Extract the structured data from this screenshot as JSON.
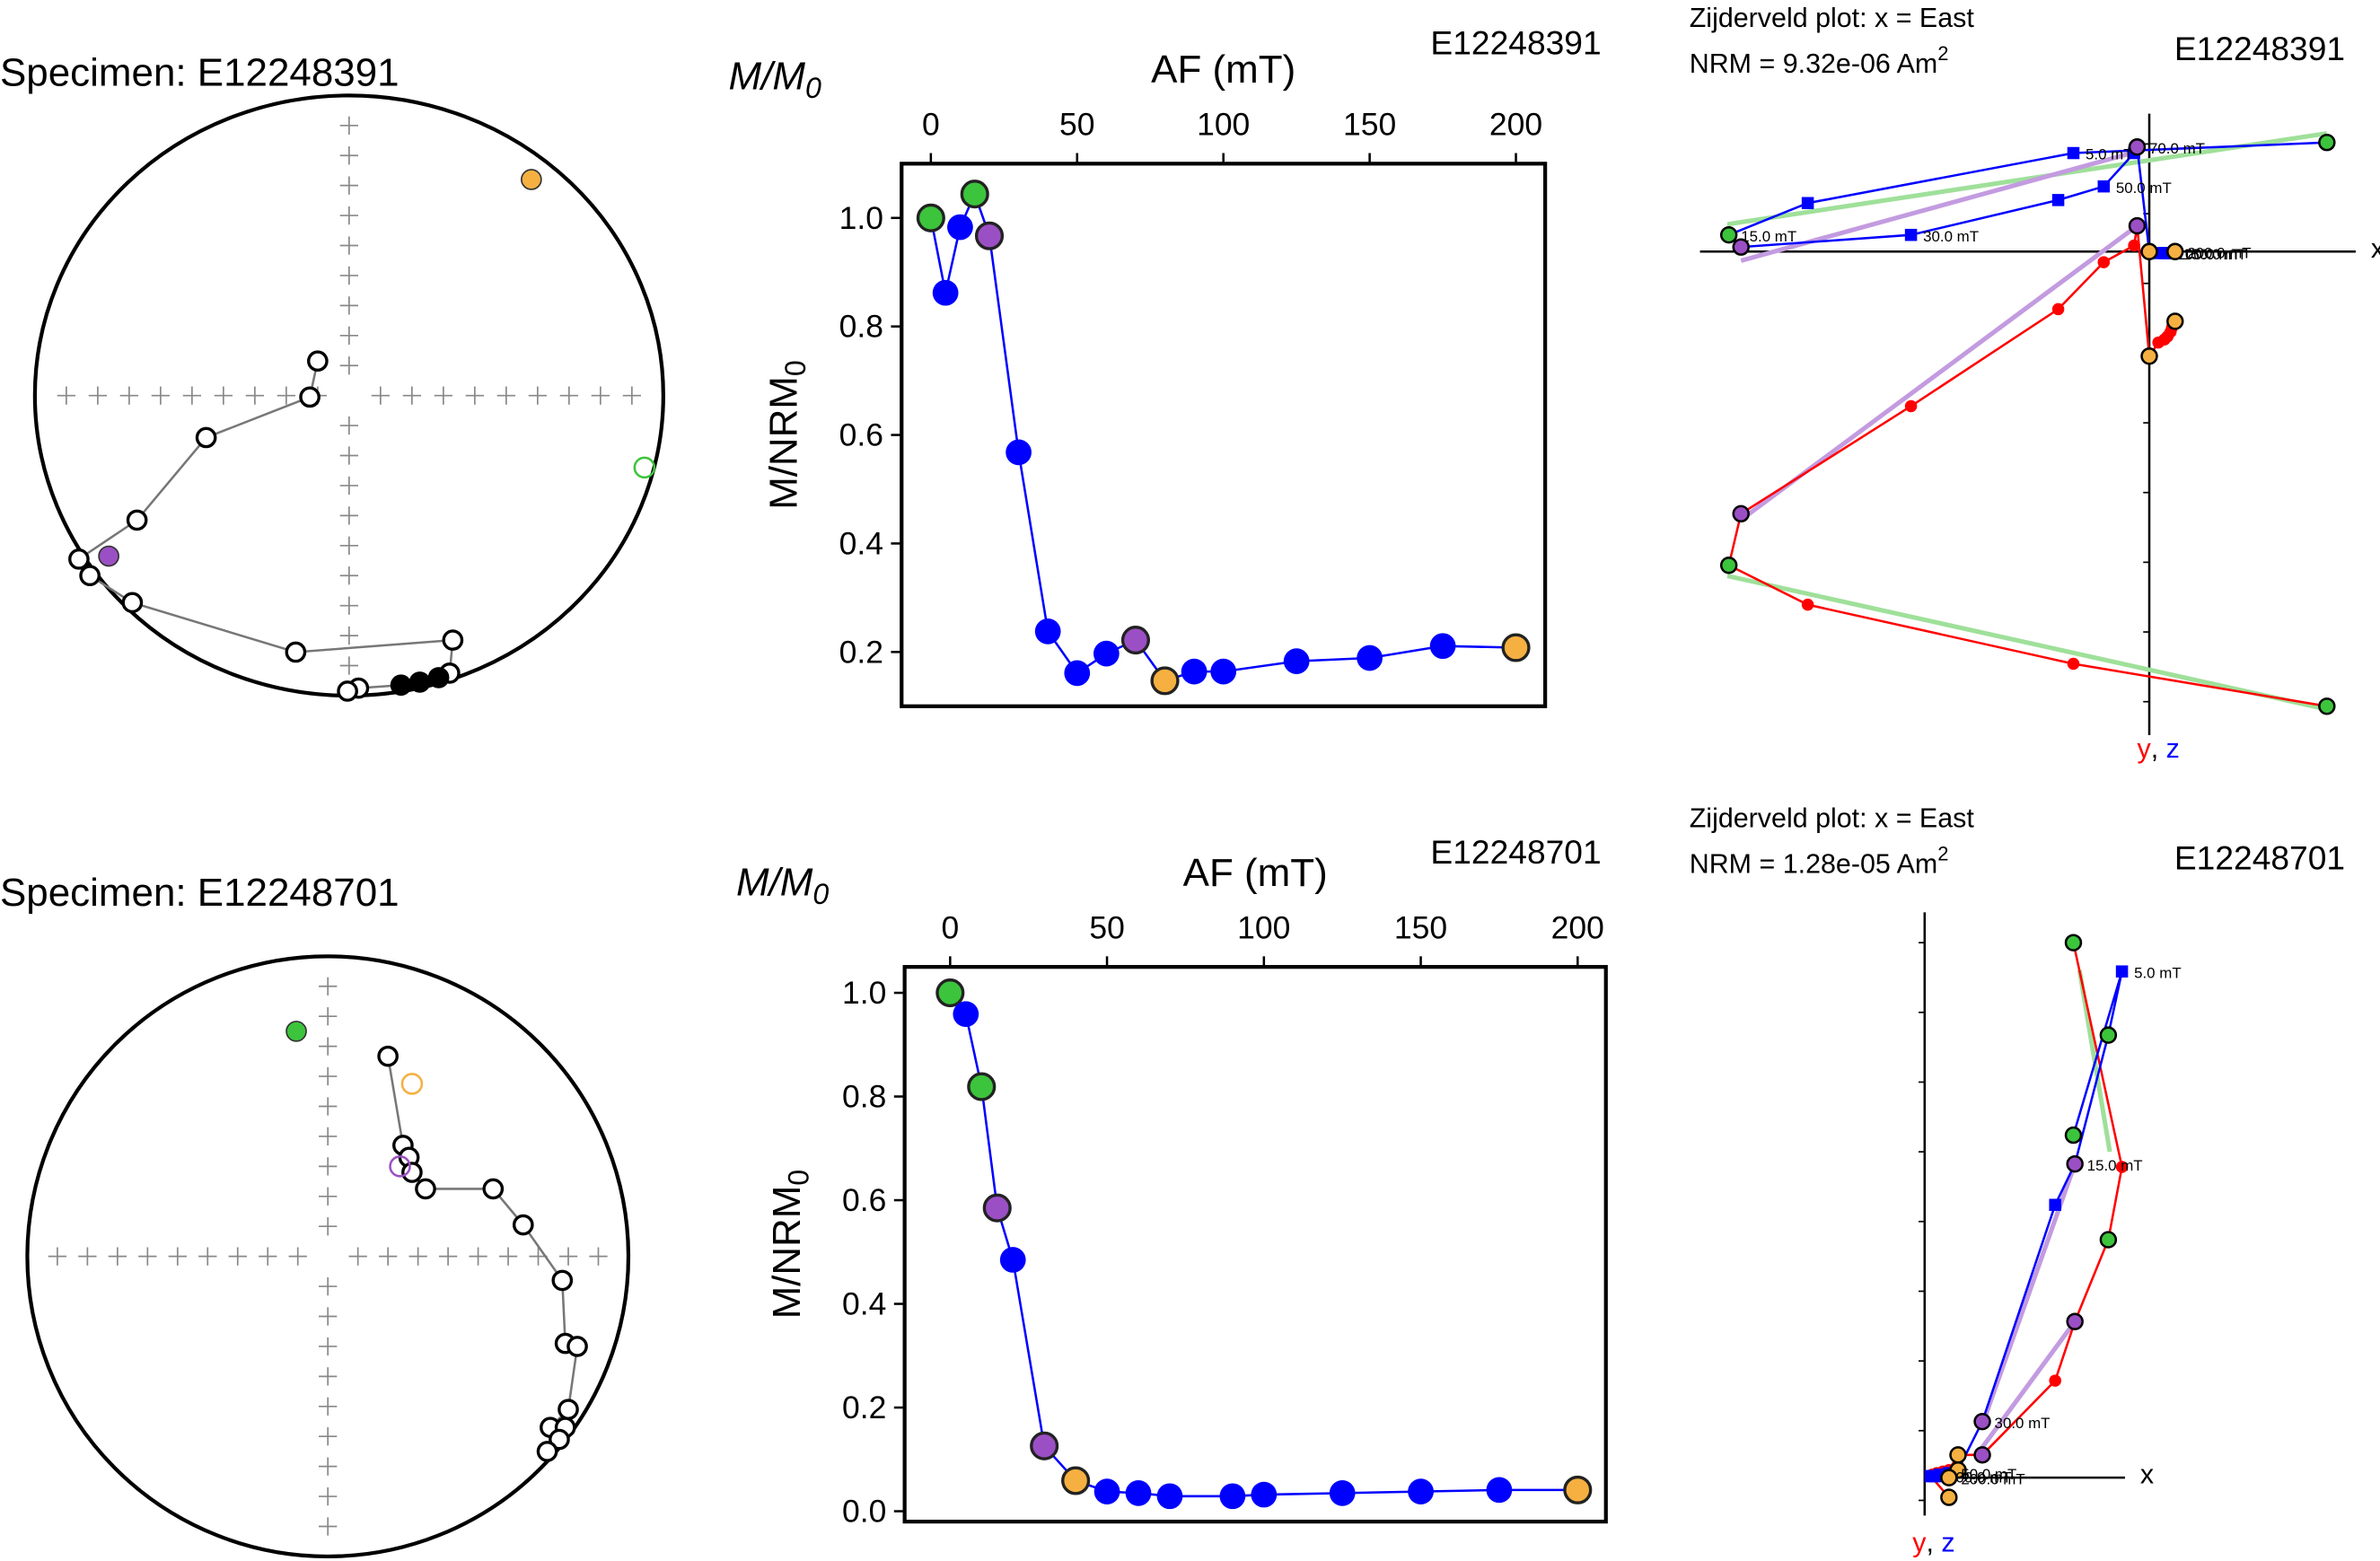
{
  "chart_data": [
    {
      "type": "equal-area",
      "title": "Specimen: E12248391",
      "path": {
        "x": [
          -0.1,
          -0.125,
          -0.455,
          -0.675,
          -0.86,
          -0.825,
          -0.69,
          -0.17,
          0.33,
          0.32,
          0.285,
          0.225,
          0.165,
          0.03,
          -0.005
        ],
        "y": [
          0.115,
          -0.005,
          -0.14,
          -0.415,
          -0.545,
          -0.6,
          -0.69,
          -0.855,
          -0.815,
          -0.925,
          -0.94,
          -0.955,
          -0.965,
          -0.975,
          -0.985
        ],
        "lower": [
          false,
          false,
          false,
          false,
          false,
          false,
          false,
          false,
          false,
          false,
          true,
          true,
          true,
          false,
          false
        ]
      },
      "highlights": [
        {
          "color": "#f5b041",
          "x": 0.58,
          "y": 0.72,
          "lower": true
        },
        {
          "color": "#9b4fc4",
          "x": -0.765,
          "y": -0.535,
          "lower": true
        },
        {
          "color": "#3cc43c",
          "x": 0.94,
          "y": -0.24,
          "lower": false
        }
      ]
    },
    {
      "type": "line",
      "specimen": "E12248391",
      "title": {
        "text": "M/M",
        "sub": "0"
      },
      "xlabel": "AF (mT)",
      "ylabel": {
        "text": "M/NRM",
        "sub": "0"
      },
      "color": "#0000ff",
      "x": [
        0,
        5,
        10,
        15,
        20,
        30,
        40,
        50,
        60,
        70,
        80,
        90,
        100,
        125,
        150,
        175,
        200
      ],
      "values": [
        1.0,
        0.862,
        0.983,
        1.044,
        0.967,
        0.568,
        0.238,
        0.161,
        0.197,
        0.222,
        0.147,
        0.164,
        0.164,
        0.183,
        0.189,
        0.211,
        0.208
      ],
      "point_colors": [
        "#3cc43c",
        "#0000ff",
        "#0000ff",
        "#3cc43c",
        "#9b4fc4",
        "#0000ff",
        "#0000ff",
        "#0000ff",
        "#0000ff",
        "#9b4fc4",
        "#f5b041",
        "#0000ff",
        "#0000ff",
        "#0000ff",
        "#0000ff",
        "#0000ff",
        "#f5b041"
      ],
      "xlim": [
        -10,
        210
      ],
      "ylim": [
        0.1,
        1.1
      ],
      "xticks": [
        0,
        50,
        100,
        150,
        200
      ],
      "yticks": [
        0.2,
        0.4,
        0.6,
        0.8,
        {
          "value": 1,
          "label": "1.0"
        }
      ]
    },
    {
      "type": "zijderveld",
      "title": "Zijderveld plot: x = East",
      "nrm": {
        "text": "NRM = 9.32e-06 Am",
        "sup": "2"
      },
      "specimen": "E12248391",
      "xlabel": "x",
      "ylabel": [
        "y",
        ", ",
        "z"
      ],
      "y_color": "#ff0000",
      "z_color": "#0000ff",
      "x": [
        1.17,
        -0.5,
        -2.25,
        -2.77,
        -2.69,
        -1.57,
        -0.6,
        -0.3,
        -0.1,
        -0.08,
        0.0,
        0.06,
        0.1,
        0.12,
        0.14,
        0.15,
        0.17
      ],
      "y": [
        3.0,
        2.72,
        2.33,
        2.07,
        1.73,
        1.02,
        0.38,
        0.07,
        -0.04,
        -0.17,
        0.69,
        0.6,
        0.58,
        0.56,
        0.53,
        0.5,
        0.46
      ],
      "z": [
        -0.72,
        -0.65,
        -0.32,
        -0.11,
        -0.03,
        -0.11,
        -0.34,
        -0.43,
        -0.65,
        -0.69,
        0.0,
        0.01,
        0.01,
        0.01,
        0.01,
        0.01,
        0.0
      ],
      "highlight_colors": [
        "#3cc43c",
        null,
        null,
        "#3cc43c",
        "#9b4fc4",
        null,
        null,
        null,
        null,
        "#9b4fc4",
        "#f5b041",
        null,
        null,
        null,
        null,
        null,
        "#f5b041"
      ],
      "step_labels": [
        null,
        "5.0 mT",
        null,
        "15.0 mT",
        null,
        "30.0 mT",
        null,
        "50.0 mT",
        null,
        "70.0 mT",
        null,
        null,
        "100.0 mT",
        null,
        "150.0 mT",
        null,
        "200.0 mT"
      ],
      "fit_lines": [
        {
          "color": "#9fe09a",
          "x": [
            -2.78,
            1.17
          ],
          "y": [
            -0.18,
            -0.78
          ]
        },
        {
          "color": "#9fe09a",
          "x": [
            -2.78,
            1.17
          ],
          "y": [
            2.14,
            3.02
          ]
        },
        {
          "color": "#c39be0",
          "x": [
            -2.69,
            -0.08
          ],
          "y": [
            0.06,
            -0.66
          ]
        },
        {
          "color": "#c39be0",
          "x": [
            -2.69,
            -0.08
          ],
          "y": [
            1.77,
            -0.17
          ]
        }
      ]
    },
    {
      "type": "equal-area",
      "title": "Specimen: E12248701",
      "path": {
        "x": [
          0.2,
          0.25,
          0.27,
          0.28,
          0.325,
          0.55,
          0.65,
          0.78,
          0.79,
          0.83,
          0.8,
          0.74,
          0.79,
          0.77,
          0.73
        ],
        "y": [
          0.667,
          0.37,
          0.33,
          0.28,
          0.225,
          0.225,
          0.105,
          -0.08,
          -0.29,
          -0.3,
          -0.51,
          -0.57,
          -0.57,
          -0.61,
          -0.65
        ],
        "lower": [
          false,
          false,
          false,
          false,
          false,
          false,
          false,
          false,
          false,
          false,
          false,
          false,
          false,
          false,
          false
        ]
      },
      "highlights": [
        {
          "color": "#3cc43c",
          "x": -0.105,
          "y": 0.75,
          "lower": true
        },
        {
          "color": "#f5b041",
          "x": 0.28,
          "y": 0.575,
          "lower": false
        },
        {
          "color": "#9b4fc4",
          "x": 0.24,
          "y": 0.3,
          "lower": false
        }
      ]
    },
    {
      "type": "line",
      "specimen": "E12248701",
      "title": {
        "text": "M/M",
        "sub": "0"
      },
      "xlabel": "AF (mT)",
      "ylabel": {
        "text": "M/NRM",
        "sub": "0"
      },
      "color": "#0000ff",
      "x": [
        0,
        5,
        10,
        15,
        20,
        30,
        40,
        50,
        60,
        70,
        90,
        100,
        125,
        150,
        175,
        200
      ],
      "values": [
        1.0,
        0.959,
        0.819,
        0.585,
        0.485,
        0.126,
        0.059,
        0.038,
        0.035,
        0.029,
        0.029,
        0.032,
        0.035,
        0.038,
        0.041,
        0.041
      ],
      "point_colors": [
        "#3cc43c",
        "#0000ff",
        "#3cc43c",
        "#9b4fc4",
        "#0000ff",
        "#9b4fc4",
        "#f5b041",
        "#0000ff",
        "#0000ff",
        "#0000ff",
        "#0000ff",
        "#0000ff",
        "#0000ff",
        "#0000ff",
        "#0000ff",
        "#f5b041"
      ],
      "xlim": [
        -14.5,
        209
      ],
      "ylim": [
        -0.02,
        1.05
      ],
      "xticks": [
        0,
        50,
        100,
        150,
        200
      ],
      "yticks": [
        {
          "value": 0,
          "label": "0.0"
        },
        0.2,
        0.4,
        0.6,
        0.8,
        {
          "value": 1,
          "label": "1.0"
        }
      ]
    },
    {
      "type": "zijderveld",
      "title": "Zijderveld plot: x = East",
      "nrm": {
        "text": "NRM = 1.28e-05 Am",
        "sup": "2"
      },
      "specimen": "E12248701",
      "xlabel": "x",
      "ylabel": [
        "y",
        ", ",
        "z"
      ],
      "y_color": "#ff0000",
      "z_color": "#0000ff",
      "x": [
        0.98,
        1.3,
        1.21,
        0.99,
        0.86,
        0.38,
        0.22,
        0.16,
        0.12,
        0.1,
        0.08,
        0.07,
        0.06,
        0.05,
        0.04,
        0.16
      ],
      "y": [
        -3.53,
        -2.05,
        -1.57,
        -1.03,
        -0.64,
        -0.15,
        -0.15,
        -0.05,
        -0.04,
        -0.03,
        -0.03,
        -0.02,
        -0.02,
        -0.02,
        -0.01,
        0.13
      ],
      "z": [
        -2.26,
        -3.34,
        -2.92,
        -2.07,
        -1.8,
        -0.37,
        -0.05,
        -0.03,
        -0.02,
        -0.02,
        -0.01,
        -0.01,
        -0.01,
        -0.01,
        -0.01,
        0.0
      ],
      "highlight_colors": [
        "#3cc43c",
        null,
        "#3cc43c",
        "#9b4fc4",
        null,
        "#9b4fc4",
        "#f5b041",
        null,
        null,
        null,
        null,
        null,
        null,
        null,
        null,
        "#f5b041"
      ],
      "step_labels": [
        null,
        "5.0 mT",
        null,
        "15.0 mT",
        null,
        "30.0 mT",
        null,
        "50.0 mT",
        null,
        null,
        null,
        "100.0 mT",
        null,
        null,
        null,
        "200.0 mT"
      ],
      "fit_lines": [
        {
          "color": "#9fe09a",
          "x": [
            1.02,
            1.22
          ],
          "y": [
            -3.35,
            -2.15
          ]
        },
        {
          "color": "#c39be0",
          "x": [
            0.38,
            0.99
          ],
          "y": [
            -0.35,
            -2.07
          ]
        },
        {
          "color": "#c39be0",
          "x": [
            0.38,
            0.99
          ],
          "y": [
            -0.2,
            -1.03
          ]
        }
      ]
    }
  ]
}
